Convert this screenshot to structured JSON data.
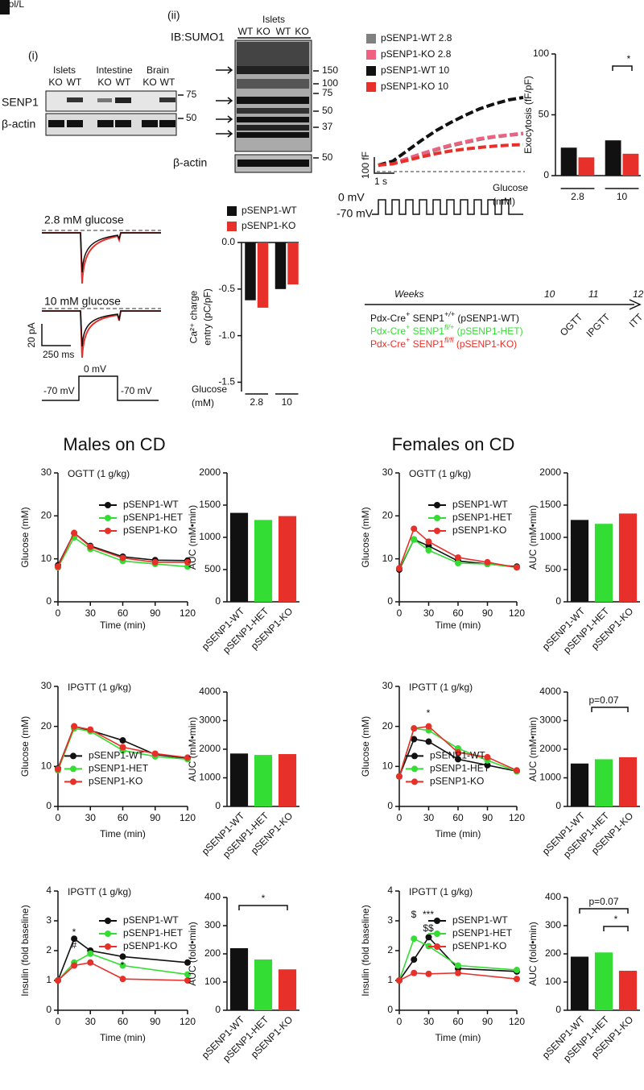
{
  "corner_text": "ool/L",
  "blot_i": {
    "label": "(i)",
    "tissues": [
      "Islets",
      "Intestine",
      "Brain"
    ],
    "lanes": [
      "KO",
      "WT",
      "KO",
      "WT",
      "KO",
      "WT"
    ],
    "rows": [
      "SENP1",
      "β-actin"
    ],
    "markers": [
      "75",
      "50"
    ]
  },
  "blot_ii": {
    "label": "(ii)",
    "tissue": "Islets",
    "lanes": [
      "WT",
      "KO",
      "WT",
      "KO"
    ],
    "antibody": "IB:SUMO1",
    "markers": [
      "150",
      "100",
      "75",
      "50",
      "37"
    ],
    "loading": "β-actin",
    "loading_marker": "50"
  },
  "capacitance_protocol": {
    "scale_y": "100 fF",
    "scale_x": "1 s",
    "voltages": [
      "0 mV",
      "-70 mV"
    ]
  },
  "current_traces": {
    "conditions": [
      "2.8 mM glucose",
      "10 mM glucose"
    ],
    "scale_y": "20 pA",
    "scale_x": "250 ms",
    "protocol": [
      "0 mV",
      "-70 mV",
      "-70 mV"
    ]
  },
  "timeline": {
    "label": "Weeks",
    "weeks": [
      "10",
      "11",
      "12"
    ],
    "tests": [
      "OGTT",
      "IPGTT",
      "ITT"
    ],
    "genotypes": [
      {
        "parts": [
          "Pdx-Cre",
          "+",
          " SENP1",
          "+/+",
          " (pSENP1-WT)"
        ],
        "color": "#111111"
      },
      {
        "parts": [
          "Pdx-Cre",
          "+",
          " SENP1",
          "fl/+",
          " (pSENP1-HET)"
        ],
        "color": "#33dd33"
      },
      {
        "parts": [
          "Pdx-Cre",
          "+",
          " SENP1",
          "fl/fl",
          " (pSENP1-KO)"
        ],
        "color": "#e8302a"
      }
    ]
  },
  "headings": [
    "Males on CD",
    "Females on CD"
  ],
  "chart_data": [
    {
      "type": "bar",
      "ylabel": "Exocytosis (fF/pF)",
      "xlabel": [
        "Glucose",
        "(mM)"
      ],
      "categories": [
        "2.8",
        "10"
      ],
      "series": [
        {
          "color": "#111111",
          "values": [
            23,
            29
          ]
        },
        {
          "color": "#e8302a",
          "values": [
            15,
            18
          ]
        }
      ],
      "ylim": [
        0,
        100
      ],
      "yticks": [
        0,
        50,
        100
      ],
      "annotations": [
        "*"
      ]
    },
    {
      "type": "line",
      "x": [
        0,
        1,
        2,
        3,
        4,
        5,
        6,
        7,
        8,
        9,
        10
      ],
      "xlim": [
        0,
        10
      ],
      "ylim": [
        0,
        500
      ],
      "legend": "above",
      "series": [
        {
          "name": "pSENP1-WT 2.8",
          "color": "#808080",
          "values": [
            0,
            12,
            40,
            68,
            95,
            120,
            140,
            160,
            175,
            185,
            195
          ]
        },
        {
          "name": "pSENP1-KO 2.8",
          "color": "#f06080",
          "values": [
            0,
            12,
            42,
            72,
            100,
            125,
            145,
            165,
            178,
            188,
            198
          ]
        },
        {
          "name": "pSENP1-WT 10",
          "color": "#111111",
          "values": [
            0,
            25,
            90,
            155,
            215,
            265,
            310,
            350,
            380,
            405,
            420
          ]
        },
        {
          "name": "pSENP1-KO 10",
          "color": "#e8302a",
          "values": [
            0,
            8,
            30,
            52,
            72,
            88,
            100,
            110,
            118,
            124,
            128
          ]
        }
      ]
    },
    {
      "type": "bar",
      "ylabel": [
        "Ca²⁺ charge",
        "entry (pC/pF)"
      ],
      "xlabel": [
        "Glucose",
        "(mM)"
      ],
      "categories": [
        "2.8",
        "10"
      ],
      "series": [
        {
          "name": "pSENP1-WT",
          "color": "#111111",
          "values": [
            -0.62,
            -0.5
          ]
        },
        {
          "name": "pSENP1-KO",
          "color": "#e8302a",
          "values": [
            -0.7,
            -0.45
          ]
        }
      ],
      "ylim": [
        -1.6,
        0
      ],
      "yticks": [
        {
          "value": 0,
          "label": "0.0"
        },
        -0.5,
        {
          "value": -1,
          "label": "-1.0"
        },
        -1.5
      ],
      "legend": "above"
    },
    {
      "type": "line",
      "title": "OGTT (1 g/kg)",
      "xlabel": "Time (min)",
      "ylabel": "Glucose (mM)",
      "x": [
        0,
        15,
        30,
        60,
        90,
        120
      ],
      "xlim": [
        0,
        120
      ],
      "xticks": [
        0,
        30,
        60,
        90,
        120
      ],
      "ylim": [
        0,
        30
      ],
      "yticks": [
        0,
        10,
        20,
        30
      ],
      "legend": "upper right",
      "series": [
        {
          "name": "pSENP1-WT",
          "color": "#111111",
          "values": [
            8.5,
            16,
            13,
            10.5,
            9.7,
            9.6
          ]
        },
        {
          "name": "pSENP1-HET",
          "color": "#33dd33",
          "values": [
            8,
            15,
            12.3,
            9.5,
            8.8,
            8.2
          ]
        },
        {
          "name": "pSENP1-KO",
          "color": "#e8302a",
          "values": [
            8.2,
            16,
            12.8,
            10.2,
            9.2,
            9.2
          ]
        }
      ]
    },
    {
      "type": "bar",
      "ylabel": "AUC (mM•min)",
      "categories": [
        "pSENP1-WT",
        "pSENP1-HET",
        "pSENP1-KO"
      ],
      "values": [
        1380,
        1270,
        1330
      ],
      "colors": [
        "#111111",
        "#33dd33",
        "#e8302a"
      ],
      "ylim": [
        0,
        2000
      ],
      "yticks": [
        0,
        500,
        1000,
        1500,
        2000
      ]
    },
    {
      "type": "line",
      "title": "OGTT (1 g/kg)",
      "xlabel": "Time (min)",
      "ylabel": "Glucose (mM)",
      "x": [
        0,
        15,
        30,
        60,
        90,
        120
      ],
      "xlim": [
        0,
        120
      ],
      "xticks": [
        0,
        30,
        60,
        90,
        120
      ],
      "ylim": [
        0,
        30
      ],
      "yticks": [
        0,
        10,
        20,
        30
      ],
      "legend": "upper right",
      "series": [
        {
          "name": "pSENP1-WT",
          "color": "#111111",
          "values": [
            7.5,
            14.5,
            13,
            9.5,
            8.8,
            8.2
          ]
        },
        {
          "name": "pSENP1-HET",
          "color": "#33dd33",
          "values": [
            7.8,
            14.5,
            12,
            9,
            8.8,
            8
          ]
        },
        {
          "name": "pSENP1-KO",
          "color": "#e8302a",
          "values": [
            7.8,
            17,
            14,
            10.3,
            9.2,
            8
          ]
        }
      ]
    },
    {
      "type": "bar",
      "ylabel": "AUC (mM•min)",
      "categories": [
        "pSENP1-WT",
        "pSENP1-HET",
        "pSENP1-KO"
      ],
      "values": [
        1270,
        1210,
        1370
      ],
      "colors": [
        "#111111",
        "#33dd33",
        "#e8302a"
      ],
      "ylim": [
        0,
        2000
      ],
      "yticks": [
        0,
        500,
        1000,
        1500,
        2000
      ]
    },
    {
      "type": "line",
      "title": "IPGTT (1 g/kg)",
      "xlabel": "Time (min)",
      "ylabel": "Glucose (mM)",
      "x": [
        0,
        15,
        30,
        60,
        90,
        120
      ],
      "xlim": [
        0,
        120
      ],
      "xticks": [
        0,
        30,
        60,
        90,
        120
      ],
      "ylim": [
        0,
        30
      ],
      "yticks": [
        0,
        10,
        20,
        30
      ],
      "legend": "lower left",
      "series": [
        {
          "name": "pSENP1-WT",
          "color": "#111111",
          "values": [
            9.5,
            20,
            19,
            16.5,
            13,
            12
          ]
        },
        {
          "name": "pSENP1-HET",
          "color": "#33dd33",
          "values": [
            9,
            19.5,
            18.8,
            14,
            12.5,
            11.8
          ]
        },
        {
          "name": "pSENP1-KO",
          "color": "#e8302a",
          "values": [
            9.3,
            20,
            19.2,
            14.8,
            13.2,
            12.2
          ]
        }
      ]
    },
    {
      "type": "bar",
      "ylabel": "AUC (mM•min)",
      "categories": [
        "pSENP1-WT",
        "pSENP1-HET",
        "pSENP1-KO"
      ],
      "values": [
        1850,
        1800,
        1830
      ],
      "colors": [
        "#111111",
        "#33dd33",
        "#e8302a"
      ],
      "ylim": [
        0,
        4000
      ],
      "yticks": [
        0,
        1000,
        2000,
        3000,
        4000
      ]
    },
    {
      "type": "line",
      "title": "IPGTT (1 g/kg)",
      "xlabel": "Time (min)",
      "ylabel": "Glucose (mM)",
      "x": [
        0,
        15,
        30,
        60,
        90,
        120
      ],
      "xlim": [
        0,
        120
      ],
      "xticks": [
        0,
        30,
        60,
        90,
        120
      ],
      "ylim": [
        0,
        30
      ],
      "yticks": [
        0,
        10,
        20,
        30
      ],
      "legend": "lower left",
      "annotations": [
        "*"
      ],
      "series": [
        {
          "name": "pSENP1-WT",
          "color": "#111111",
          "values": [
            7.5,
            16.8,
            16.2,
            11.8,
            10.3,
            8.8
          ]
        },
        {
          "name": "pSENP1-HET",
          "color": "#33dd33",
          "values": [
            7.5,
            19.5,
            19,
            14.5,
            11.5,
            8.8
          ]
        },
        {
          "name": "pSENP1-KO",
          "color": "#e8302a",
          "values": [
            7.5,
            19.5,
            20,
            13.5,
            12.3,
            9
          ]
        }
      ]
    },
    {
      "type": "bar",
      "ylabel": "AUC (mM•min)",
      "categories": [
        "pSENP1-WT",
        "pSENP1-HET",
        "pSENP1-KO"
      ],
      "values": [
        1500,
        1650,
        1720
      ],
      "colors": [
        "#111111",
        "#33dd33",
        "#e8302a"
      ],
      "ylim": [
        0,
        4000
      ],
      "yticks": [
        0,
        1000,
        2000,
        3000,
        4000
      ],
      "annotations": [
        "p=0.07"
      ]
    },
    {
      "type": "line",
      "title": "IPGTT (1 g/kg)",
      "xlabel": "Time (min)",
      "ylabel": "Insulin (fold baseline)",
      "x": [
        0,
        15,
        30,
        60,
        120
      ],
      "xlim": [
        0,
        120
      ],
      "xticks": [
        0,
        30,
        60,
        90,
        120
      ],
      "ylim": [
        0,
        4
      ],
      "yticks": [
        0,
        1,
        2,
        3,
        4
      ],
      "legend": "upper right",
      "annotations": [
        "*",
        "#",
        "*"
      ],
      "series": [
        {
          "name": "pSENP1-WT",
          "color": "#111111",
          "values": [
            1,
            2.4,
            2,
            1.8,
            1.6
          ]
        },
        {
          "name": "pSENP1-HET",
          "color": "#33dd33",
          "values": [
            1,
            1.6,
            1.9,
            1.5,
            1.2
          ]
        },
        {
          "name": "pSENP1-KO",
          "color": "#e8302a",
          "values": [
            1,
            1.5,
            1.6,
            1.05,
            1.0
          ]
        }
      ]
    },
    {
      "type": "bar",
      "ylabel": "AUC (fold•min)",
      "categories": [
        "pSENP1-WT",
        "pSENP1-HET",
        "pSENP1-KO"
      ],
      "values": [
        220,
        180,
        145
      ],
      "colors": [
        "#111111",
        "#33dd33",
        "#e8302a"
      ],
      "ylim": [
        0,
        400
      ],
      "yticks": [
        0,
        100,
        200,
        300,
        400
      ],
      "annotations": [
        "*"
      ]
    },
    {
      "type": "line",
      "title": "IPGTT (1 g/kg)",
      "xlabel": "Time (min)",
      "ylabel": "Insulin (fold baseline)",
      "x": [
        0,
        15,
        30,
        60,
        120
      ],
      "xlim": [
        0,
        120
      ],
      "xticks": [
        0,
        30,
        60,
        90,
        120
      ],
      "ylim": [
        0,
        4
      ],
      "yticks": [
        0,
        1,
        2,
        3,
        4
      ],
      "legend": "upper right",
      "annotations": [
        "$",
        "***",
        "$$"
      ],
      "series": [
        {
          "name": "pSENP1-WT",
          "color": "#111111",
          "values": [
            1,
            1.7,
            2.45,
            1.4,
            1.3
          ]
        },
        {
          "name": "pSENP1-HET",
          "color": "#33dd33",
          "values": [
            1,
            2.4,
            2.15,
            1.5,
            1.35
          ]
        },
        {
          "name": "pSENP1-KO",
          "color": "#e8302a",
          "values": [
            1,
            1.25,
            1.22,
            1.25,
            1.05
          ]
        }
      ]
    },
    {
      "type": "bar",
      "ylabel": "AUC (fold•min)",
      "categories": [
        "pSENP1-WT",
        "pSENP1-HET",
        "pSENP1-KO"
      ],
      "values": [
        190,
        205,
        140
      ],
      "colors": [
        "#111111",
        "#33dd33",
        "#e8302a"
      ],
      "ylim": [
        0,
        400
      ],
      "yticks": [
        0,
        100,
        200,
        300,
        400
      ],
      "annotations": [
        "p=0.07",
        "*"
      ]
    }
  ]
}
